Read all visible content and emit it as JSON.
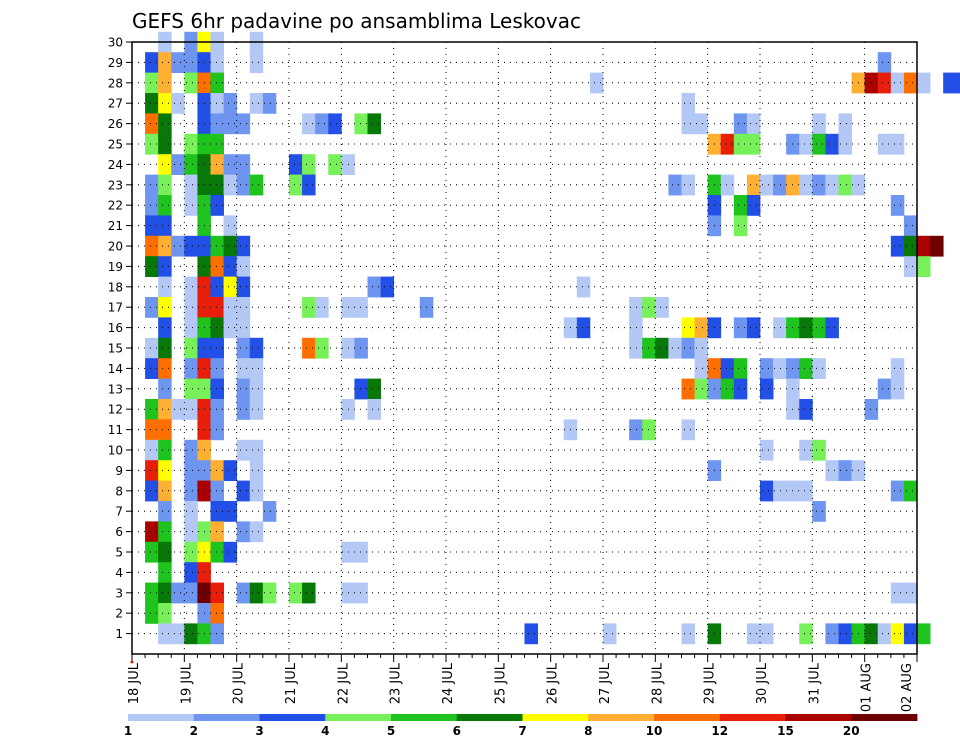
{
  "chart_data": {
    "type": "heatmap",
    "title": "GEFS 6hr padavine po ansamblima Leskovac",
    "xlabel": "",
    "ylabel": "",
    "x_tick_labels": [
      "18 JUL",
      "19 JUL",
      "20 JUL",
      "21 JUL",
      "22 JUL",
      "23 JUL",
      "24 JUL",
      "25 JUL",
      "26 JUL",
      "27 JUL",
      "28 JUL",
      "29 JUL",
      "30 JUL",
      "31 JUL",
      "01 AUG",
      "02 AUG"
    ],
    "y_tick_labels": [
      "1",
      "2",
      "3",
      "4",
      "5",
      "6",
      "7",
      "8",
      "9",
      "10",
      "11",
      "12",
      "13",
      "14",
      "15",
      "16",
      "17",
      "18",
      "19",
      "20",
      "21",
      "22",
      "23",
      "24",
      "25",
      "26",
      "27",
      "28",
      "29",
      "30"
    ],
    "x_range_days": [
      0,
      15
    ],
    "y_range": [
      0,
      30
    ],
    "time_step_hours": 6,
    "grid": true,
    "colorbar": {
      "placement": "bottom",
      "labels": [
        "1",
        "2",
        "3",
        "4",
        "5",
        "6",
        "7",
        "8",
        "10",
        "12",
        "15",
        "20"
      ],
      "colors": [
        "#b4c8f5",
        "#6e96f0",
        "#2250e6",
        "#78f05a",
        "#1ec31e",
        "#087808",
        "#ffff00",
        "#ffaf32",
        "#ff6e00",
        "#e61e0a",
        "#aa0000",
        "#6e0000"
      ]
    },
    "cells_format": "[ensemble_member, step_from_x_start, color_class_index]",
    "cells": [
      [
        30,
        2,
        0
      ],
      [
        30,
        4,
        1
      ],
      [
        30,
        5,
        6
      ],
      [
        30,
        6,
        0
      ],
      [
        30,
        9,
        0
      ],
      [
        29,
        1,
        2
      ],
      [
        29,
        2,
        7
      ],
      [
        29,
        3,
        1
      ],
      [
        29,
        4,
        1
      ],
      [
        29,
        5,
        2
      ],
      [
        29,
        6,
        0
      ],
      [
        29,
        9,
        0
      ],
      [
        29,
        57,
        1
      ],
      [
        28,
        1,
        3
      ],
      [
        28,
        2,
        7
      ],
      [
        28,
        4,
        3
      ],
      [
        28,
        5,
        8
      ],
      [
        28,
        6,
        4
      ],
      [
        28,
        35,
        0
      ],
      [
        28,
        55,
        7
      ],
      [
        28,
        56,
        10
      ],
      [
        28,
        57,
        9
      ],
      [
        28,
        58,
        0
      ],
      [
        28,
        59,
        8
      ],
      [
        28,
        60,
        0
      ],
      [
        28,
        62,
        2
      ],
      [
        28,
        63,
        2
      ],
      [
        27,
        1,
        5
      ],
      [
        27,
        2,
        6
      ],
      [
        27,
        3,
        0
      ],
      [
        27,
        5,
        2
      ],
      [
        27,
        6,
        0
      ],
      [
        27,
        7,
        1
      ],
      [
        27,
        9,
        0
      ],
      [
        27,
        10,
        1
      ],
      [
        27,
        42,
        0
      ],
      [
        26,
        1,
        8
      ],
      [
        26,
        2,
        5
      ],
      [
        26,
        5,
        2
      ],
      [
        26,
        6,
        1
      ],
      [
        26,
        7,
        1
      ],
      [
        26,
        8,
        1
      ],
      [
        26,
        13,
        0
      ],
      [
        26,
        14,
        1
      ],
      [
        26,
        15,
        2
      ],
      [
        26,
        17,
        3
      ],
      [
        26,
        18,
        5
      ],
      [
        26,
        42,
        0
      ],
      [
        26,
        43,
        0
      ],
      [
        26,
        46,
        1
      ],
      [
        26,
        47,
        0
      ],
      [
        26,
        52,
        0
      ],
      [
        26,
        54,
        0
      ],
      [
        25,
        1,
        3
      ],
      [
        25,
        2,
        5
      ],
      [
        25,
        4,
        3
      ],
      [
        25,
        5,
        4
      ],
      [
        25,
        6,
        4
      ],
      [
        25,
        44,
        7
      ],
      [
        25,
        45,
        9
      ],
      [
        25,
        46,
        3
      ],
      [
        25,
        47,
        3
      ],
      [
        25,
        50,
        1
      ],
      [
        25,
        51,
        0
      ],
      [
        25,
        52,
        4
      ],
      [
        25,
        53,
        2
      ],
      [
        25,
        54,
        0
      ],
      [
        25,
        57,
        0
      ],
      [
        25,
        58,
        0
      ],
      [
        24,
        2,
        6
      ],
      [
        24,
        3,
        1
      ],
      [
        24,
        4,
        4
      ],
      [
        24,
        5,
        5
      ],
      [
        24,
        6,
        7
      ],
      [
        24,
        7,
        1
      ],
      [
        24,
        8,
        1
      ],
      [
        24,
        12,
        2
      ],
      [
        24,
        13,
        3
      ],
      [
        24,
        15,
        3
      ],
      [
        24,
        16,
        0
      ],
      [
        23,
        1,
        1
      ],
      [
        23,
        2,
        3
      ],
      [
        23,
        4,
        0
      ],
      [
        23,
        5,
        5
      ],
      [
        23,
        6,
        5
      ],
      [
        23,
        7,
        0
      ],
      [
        23,
        8,
        1
      ],
      [
        23,
        9,
        4
      ],
      [
        23,
        12,
        3
      ],
      [
        23,
        13,
        2
      ],
      [
        23,
        41,
        1
      ],
      [
        23,
        42,
        0
      ],
      [
        23,
        44,
        4
      ],
      [
        23,
        45,
        0
      ],
      [
        23,
        47,
        7
      ],
      [
        23,
        48,
        0
      ],
      [
        23,
        49,
        1
      ],
      [
        23,
        50,
        7
      ],
      [
        23,
        51,
        0
      ],
      [
        23,
        52,
        1
      ],
      [
        23,
        53,
        0
      ],
      [
        23,
        54,
        3
      ],
      [
        23,
        55,
        0
      ],
      [
        22,
        1,
        1
      ],
      [
        22,
        2,
        4
      ],
      [
        22,
        4,
        0
      ],
      [
        22,
        5,
        4
      ],
      [
        22,
        6,
        2
      ],
      [
        22,
        44,
        2
      ],
      [
        22,
        46,
        4
      ],
      [
        22,
        47,
        2
      ],
      [
        22,
        58,
        1
      ],
      [
        21,
        1,
        2
      ],
      [
        21,
        2,
        2
      ],
      [
        21,
        5,
        4
      ],
      [
        21,
        7,
        0
      ],
      [
        21,
        44,
        1
      ],
      [
        21,
        46,
        3
      ],
      [
        21,
        59,
        1
      ],
      [
        20,
        1,
        8
      ],
      [
        20,
        2,
        7
      ],
      [
        20,
        3,
        1
      ],
      [
        20,
        4,
        2
      ],
      [
        20,
        5,
        2
      ],
      [
        20,
        6,
        4
      ],
      [
        20,
        7,
        5
      ],
      [
        20,
        8,
        2
      ],
      [
        20,
        58,
        2
      ],
      [
        20,
        59,
        5
      ],
      [
        20,
        60,
        10
      ],
      [
        20,
        61,
        11
      ],
      [
        19,
        1,
        5
      ],
      [
        19,
        2,
        2
      ],
      [
        19,
        5,
        5
      ],
      [
        19,
        6,
        8
      ],
      [
        19,
        7,
        2
      ],
      [
        19,
        8,
        0
      ],
      [
        19,
        59,
        0
      ],
      [
        19,
        60,
        3
      ],
      [
        18,
        2,
        0
      ],
      [
        18,
        4,
        0
      ],
      [
        18,
        5,
        9
      ],
      [
        18,
        6,
        2
      ],
      [
        18,
        7,
        6
      ],
      [
        18,
        8,
        2
      ],
      [
        18,
        18,
        1
      ],
      [
        18,
        19,
        2
      ],
      [
        18,
        34,
        0
      ],
      [
        17,
        1,
        1
      ],
      [
        17,
        2,
        6
      ],
      [
        17,
        4,
        0
      ],
      [
        17,
        5,
        9
      ],
      [
        17,
        6,
        9
      ],
      [
        17,
        7,
        0
      ],
      [
        17,
        8,
        0
      ],
      [
        17,
        13,
        3
      ],
      [
        17,
        14,
        0
      ],
      [
        17,
        16,
        0
      ],
      [
        17,
        17,
        0
      ],
      [
        17,
        22,
        1
      ],
      [
        17,
        38,
        0
      ],
      [
        17,
        39,
        3
      ],
      [
        17,
        40,
        0
      ],
      [
        16,
        2,
        2
      ],
      [
        16,
        4,
        0
      ],
      [
        16,
        5,
        4
      ],
      [
        16,
        6,
        5
      ],
      [
        16,
        7,
        0
      ],
      [
        16,
        8,
        0
      ],
      [
        16,
        33,
        0
      ],
      [
        16,
        34,
        2
      ],
      [
        16,
        38,
        0
      ],
      [
        16,
        42,
        6
      ],
      [
        16,
        43,
        7
      ],
      [
        16,
        44,
        2
      ],
      [
        16,
        46,
        1
      ],
      [
        16,
        47,
        2
      ],
      [
        16,
        49,
        0
      ],
      [
        16,
        50,
        4
      ],
      [
        16,
        51,
        5
      ],
      [
        16,
        52,
        4
      ],
      [
        16,
        53,
        2
      ],
      [
        15,
        1,
        0
      ],
      [
        15,
        2,
        5
      ],
      [
        15,
        4,
        3
      ],
      [
        15,
        5,
        2
      ],
      [
        15,
        6,
        2
      ],
      [
        15,
        8,
        1
      ],
      [
        15,
        9,
        2
      ],
      [
        15,
        13,
        8
      ],
      [
        15,
        14,
        3
      ],
      [
        15,
        16,
        0
      ],
      [
        15,
        17,
        1
      ],
      [
        15,
        38,
        0
      ],
      [
        15,
        39,
        4
      ],
      [
        15,
        40,
        5
      ],
      [
        15,
        41,
        0
      ],
      [
        15,
        42,
        1
      ],
      [
        15,
        43,
        0
      ],
      [
        14,
        1,
        2
      ],
      [
        14,
        2,
        8
      ],
      [
        14,
        4,
        1
      ],
      [
        14,
        5,
        9
      ],
      [
        14,
        6,
        1
      ],
      [
        14,
        8,
        0
      ],
      [
        14,
        9,
        0
      ],
      [
        14,
        43,
        0
      ],
      [
        14,
        44,
        8
      ],
      [
        14,
        45,
        2
      ],
      [
        14,
        46,
        4
      ],
      [
        14,
        48,
        1
      ],
      [
        14,
        49,
        0
      ],
      [
        14,
        50,
        1
      ],
      [
        14,
        51,
        4
      ],
      [
        14,
        52,
        0
      ],
      [
        14,
        58,
        0
      ],
      [
        13,
        2,
        1
      ],
      [
        13,
        4,
        3
      ],
      [
        13,
        5,
        3
      ],
      [
        13,
        6,
        2
      ],
      [
        13,
        8,
        1
      ],
      [
        13,
        9,
        0
      ],
      [
        13,
        17,
        2
      ],
      [
        13,
        18,
        5
      ],
      [
        13,
        42,
        8
      ],
      [
        13,
        43,
        3
      ],
      [
        13,
        44,
        1
      ],
      [
        13,
        45,
        4
      ],
      [
        13,
        46,
        2
      ],
      [
        13,
        48,
        2
      ],
      [
        13,
        50,
        0
      ],
      [
        13,
        57,
        1
      ],
      [
        13,
        58,
        0
      ],
      [
        12,
        1,
        4
      ],
      [
        12,
        2,
        7
      ],
      [
        12,
        3,
        0
      ],
      [
        12,
        4,
        0
      ],
      [
        12,
        5,
        9
      ],
      [
        12,
        6,
        1
      ],
      [
        12,
        8,
        1
      ],
      [
        12,
        9,
        0
      ],
      [
        12,
        16,
        0
      ],
      [
        12,
        18,
        0
      ],
      [
        12,
        50,
        0
      ],
      [
        12,
        51,
        2
      ],
      [
        12,
        56,
        1
      ],
      [
        11,
        1,
        8
      ],
      [
        11,
        2,
        8
      ],
      [
        11,
        5,
        9
      ],
      [
        11,
        6,
        1
      ],
      [
        11,
        33,
        0
      ],
      [
        11,
        38,
        1
      ],
      [
        11,
        39,
        3
      ],
      [
        11,
        42,
        0
      ],
      [
        10,
        1,
        0
      ],
      [
        10,
        2,
        4
      ],
      [
        10,
        4,
        1
      ],
      [
        10,
        5,
        7
      ],
      [
        10,
        8,
        0
      ],
      [
        10,
        9,
        0
      ],
      [
        10,
        48,
        0
      ],
      [
        10,
        51,
        0
      ],
      [
        10,
        52,
        3
      ],
      [
        9,
        1,
        9
      ],
      [
        9,
        2,
        6
      ],
      [
        9,
        4,
        1
      ],
      [
        9,
        5,
        1
      ],
      [
        9,
        6,
        7
      ],
      [
        9,
        7,
        2
      ],
      [
        9,
        9,
        0
      ],
      [
        9,
        44,
        1
      ],
      [
        9,
        53,
        0
      ],
      [
        9,
        54,
        1
      ],
      [
        9,
        55,
        0
      ],
      [
        8,
        1,
        2
      ],
      [
        8,
        2,
        7
      ],
      [
        8,
        4,
        1
      ],
      [
        8,
        5,
        10
      ],
      [
        8,
        6,
        1
      ],
      [
        8,
        8,
        2
      ],
      [
        8,
        9,
        0
      ],
      [
        8,
        48,
        2
      ],
      [
        8,
        49,
        0
      ],
      [
        8,
        50,
        0
      ],
      [
        8,
        51,
        0
      ],
      [
        8,
        58,
        1
      ],
      [
        8,
        59,
        4
      ],
      [
        7,
        2,
        1
      ],
      [
        7,
        4,
        0
      ],
      [
        7,
        6,
        2
      ],
      [
        7,
        7,
        2
      ],
      [
        7,
        10,
        1
      ],
      [
        7,
        52,
        1
      ],
      [
        6,
        1,
        10
      ],
      [
        6,
        2,
        4
      ],
      [
        6,
        4,
        0
      ],
      [
        6,
        5,
        3
      ],
      [
        6,
        6,
        7
      ],
      [
        6,
        8,
        1
      ],
      [
        6,
        9,
        0
      ],
      [
        5,
        1,
        4
      ],
      [
        5,
        2,
        5
      ],
      [
        5,
        4,
        3
      ],
      [
        5,
        5,
        6
      ],
      [
        5,
        6,
        4
      ],
      [
        5,
        7,
        2
      ],
      [
        5,
        16,
        0
      ],
      [
        5,
        17,
        0
      ],
      [
        4,
        2,
        4
      ],
      [
        4,
        4,
        2
      ],
      [
        4,
        5,
        9
      ],
      [
        3,
        1,
        4
      ],
      [
        3,
        2,
        5
      ],
      [
        3,
        3,
        1
      ],
      [
        3,
        4,
        1
      ],
      [
        3,
        5,
        11
      ],
      [
        3,
        6,
        9
      ],
      [
        3,
        8,
        1
      ],
      [
        3,
        9,
        5
      ],
      [
        3,
        10,
        3
      ],
      [
        3,
        12,
        3
      ],
      [
        3,
        13,
        5
      ],
      [
        3,
        16,
        0
      ],
      [
        3,
        17,
        0
      ],
      [
        3,
        58,
        0
      ],
      [
        3,
        59,
        0
      ],
      [
        2,
        1,
        4
      ],
      [
        2,
        2,
        3
      ],
      [
        2,
        5,
        1
      ],
      [
        2,
        6,
        8
      ],
      [
        1,
        2,
        0
      ],
      [
        1,
        3,
        0
      ],
      [
        1,
        4,
        5
      ],
      [
        1,
        5,
        4
      ],
      [
        1,
        6,
        1
      ],
      [
        1,
        30,
        2
      ],
      [
        1,
        36,
        0
      ],
      [
        1,
        42,
        0
      ],
      [
        1,
        44,
        5
      ],
      [
        1,
        47,
        0
      ],
      [
        1,
        48,
        0
      ],
      [
        1,
        51,
        3
      ],
      [
        1,
        53,
        1
      ],
      [
        1,
        54,
        2
      ],
      [
        1,
        55,
        4
      ],
      [
        1,
        56,
        5
      ],
      [
        1,
        57,
        0
      ],
      [
        1,
        58,
        6
      ],
      [
        1,
        59,
        2
      ],
      [
        1,
        60,
        4
      ]
    ]
  }
}
